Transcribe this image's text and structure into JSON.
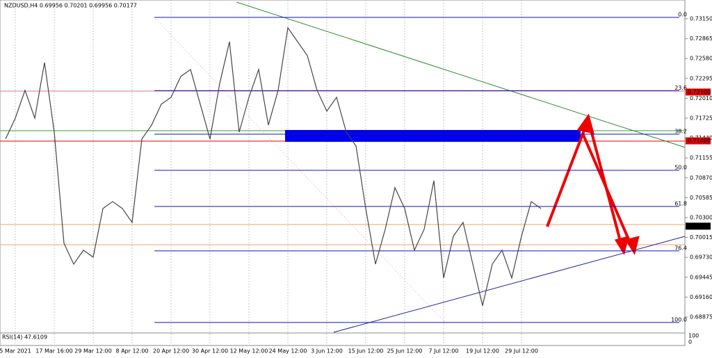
{
  "chart_data": {
    "type": "line",
    "title": "NZDUSD,H4  0.69956 0.70201 0.69956 0.70177",
    "categories": [
      null,
      "5 Mar 2021",
      null,
      null,
      null,
      "17 Mar 16:00",
      null,
      null,
      null,
      "29 Mar 12:00",
      null,
      null,
      null,
      "8 Apr 12:00",
      null,
      null,
      null,
      "20 Apr 12:00",
      null,
      null,
      null,
      "30 Apr 12:00",
      null,
      null,
      null,
      "12 May 12:00",
      null,
      null,
      null,
      "24 May 12:00",
      null,
      null,
      null,
      "3 Jun 12:00",
      null,
      null,
      null,
      "15 Jun 12:00",
      null,
      null,
      null,
      "25 Jun 12:00",
      null,
      null,
      null,
      "7 Jul 12:00",
      null,
      null,
      null,
      "19 Jul 12:00",
      null,
      null,
      null,
      "29 Jul 12:00",
      null,
      null
    ],
    "values": [
      0.71427,
      0.71725,
      0.72124,
      0.71725,
      0.72522,
      0.71526,
      0.69932,
      0.69633,
      0.69833,
      0.69733,
      0.7043,
      0.7053,
      0.7043,
      0.70231,
      0.71427,
      0.71626,
      0.71925,
      0.72024,
      0.72323,
      0.72423,
      0.71925,
      0.71427,
      0.72224,
      0.72821,
      0.71526,
      0.72024,
      0.72423,
      0.71626,
      0.72124,
      0.73021,
      0.72821,
      0.72622,
      0.72124,
      0.71825,
      0.72024,
      0.71526,
      0.71327,
      0.7043,
      0.69633,
      0.70132,
      0.70729,
      0.7043,
      0.69833,
      0.70132,
      0.70829,
      0.69435,
      0.70033,
      0.70231,
      0.69633,
      0.69037,
      0.69633,
      0.69833,
      0.69435,
      0.70033,
      0.7053,
      0.7043
    ],
    "color": "#444444",
    "ylim": [
      0.68656,
      0.73419
    ],
    "yticks": [
      {
        "value": 0.7315,
        "label": "0.73150"
      },
      {
        "value": 0.72865,
        "label": "0.72865"
      },
      {
        "value": 0.7258,
        "label": "0.72580"
      },
      {
        "value": 0.72295,
        "label": "0.72295"
      },
      {
        "value": 0.7201,
        "label": "0.72010"
      },
      {
        "value": 0.71725,
        "label": "0.71725"
      },
      {
        "value": 0.7144,
        "label": "0.71440"
      },
      {
        "value": 0.71155,
        "label": "0.71155"
      },
      {
        "value": 0.7087,
        "label": "0.70870"
      },
      {
        "value": 0.70585,
        "label": "0.70585"
      },
      {
        "value": 0.703,
        "label": "0.70300"
      },
      {
        "value": 0.70015,
        "label": "0.70015"
      },
      {
        "value": 0.6973,
        "label": "0.69730"
      },
      {
        "value": 0.69445,
        "label": "0.69445"
      },
      {
        "value": 0.6916,
        "label": "0.69160"
      },
      {
        "value": 0.68875,
        "label": "0.68875"
      }
    ],
    "grid": true,
    "fib_levels": [
      {
        "label": "0.0",
        "price": 0.7317
      },
      {
        "label": "23.6",
        "price": 0.7212
      },
      {
        "label": "38.2",
        "price": 0.71496
      },
      {
        "label": "50.0",
        "price": 0.70978
      },
      {
        "label": "61.8",
        "price": 0.7046
      },
      {
        "label": "76.4",
        "price": 0.69823
      },
      {
        "label": "100.0",
        "price": 0.68797
      }
    ],
    "price_tags": [
      {
        "label": "0.72100",
        "value": 0.721,
        "color": "#e00000"
      },
      {
        "label": "0.71400",
        "value": 0.714,
        "color": "#e00000"
      },
      {
        "label": "0.70177",
        "value": 0.70177,
        "color": "#000000"
      }
    ],
    "indicator": {
      "label": "RSI(14) 47.6109",
      "scale_top": "100",
      "scale_bottom": "0"
    }
  }
}
